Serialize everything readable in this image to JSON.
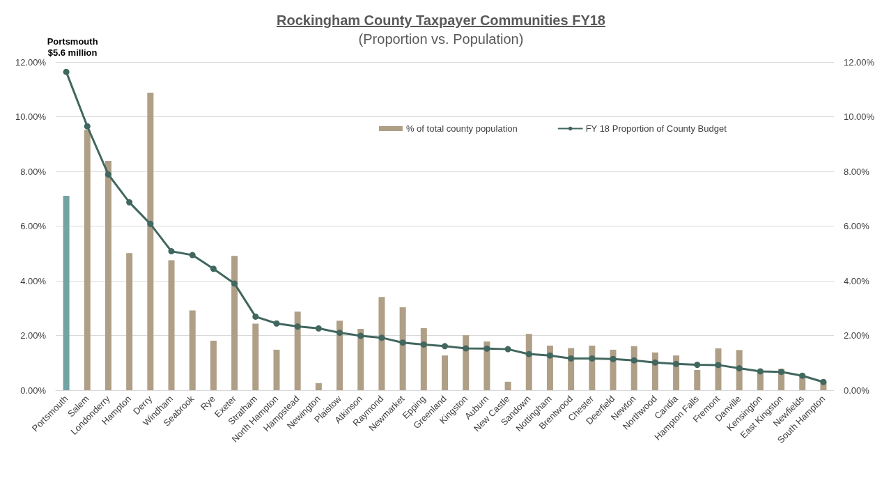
{
  "chart_data": {
    "type": "bar",
    "title": "Rockingham County Taxpayer Communities FY18",
    "subtitle": "(Proportion vs. Population)",
    "categories": [
      "Portsmouth",
      "Salem",
      "Londonderry",
      "Hampton",
      "Derry",
      "Windham",
      "Seabrook",
      "Rye",
      "Exeter",
      "Stratham",
      "North Hampton",
      "Hampstead",
      "Newington",
      "Plaistow",
      "Atkinson",
      "Raymond",
      "Newmarket",
      "Epping",
      "Greenland",
      "Kingston",
      "Auburn",
      "New Castle",
      "Sandown",
      "Nottingham",
      "Brentwood",
      "Chester",
      "Deerfield",
      "Newton",
      "Northwood",
      "Candia",
      "Hampton Falls",
      "Fremont",
      "Danville",
      "Kensington",
      "East Kingston",
      "Newfields",
      "South Hampton"
    ],
    "series": [
      {
        "name": "% of total county population",
        "color": "#b09f87",
        "colors": [
          "#72a4a3",
          "#b09f87",
          "#b09f87",
          "#b09f87",
          "#b09f87",
          "#b09f87",
          "#b09f87",
          "#b09f87",
          "#b09f87",
          "#b09f87",
          "#b09f87",
          "#b09f87",
          "#b09f87",
          "#b09f87",
          "#b09f87",
          "#b09f87",
          "#b09f87",
          "#b09f87",
          "#b09f87",
          "#b09f87",
          "#b09f87",
          "#b09f87",
          "#b09f87",
          "#b09f87",
          "#b09f87",
          "#b09f87",
          "#b09f87",
          "#b09f87",
          "#b09f87",
          "#b09f87",
          "#b09f87",
          "#b09f87",
          "#b09f87",
          "#b09f87",
          "#b09f87",
          "#b09f87",
          "#b09f87"
        ],
        "values": [
          7.11,
          9.52,
          8.38,
          5.01,
          10.88,
          4.75,
          2.92,
          1.81,
          4.91,
          2.43,
          1.48,
          2.87,
          0.26,
          2.54,
          2.24,
          3.41,
          3.03,
          2.27,
          1.27,
          2.01,
          1.78,
          0.31,
          2.06,
          1.63,
          1.54,
          1.63,
          1.48,
          1.61,
          1.38,
          1.27,
          0.74,
          1.53,
          1.47,
          0.68,
          0.78,
          0.55,
          0.3
        ]
      },
      {
        "name": "FY 18 Proportion of County Budget",
        "type": "line",
        "axis": "y2",
        "color": "#41675f",
        "values": [
          11.64,
          9.65,
          7.89,
          6.87,
          6.08,
          5.08,
          4.94,
          4.44,
          3.9,
          2.69,
          2.44,
          2.33,
          2.26,
          2.1,
          1.99,
          1.92,
          1.74,
          1.67,
          1.61,
          1.53,
          1.52,
          1.5,
          1.32,
          1.27,
          1.16,
          1.16,
          1.14,
          1.09,
          1.01,
          0.96,
          0.93,
          0.92,
          0.8,
          0.69,
          0.67,
          0.53,
          0.3
        ]
      }
    ],
    "ylim": [
      0,
      12
    ],
    "yticks": [
      {
        "value": 0,
        "label": "0.00%"
      },
      {
        "value": 2,
        "label": "2.00%"
      },
      {
        "value": 4,
        "label": "4.00%"
      },
      {
        "value": 6,
        "label": "6.00%"
      },
      {
        "value": 8,
        "label": "8.00%"
      },
      {
        "value": 10,
        "label": "10.00%"
      },
      {
        "value": 12,
        "label": "12.00%"
      }
    ],
    "y2lim": [
      0,
      12
    ],
    "y2ticks": [
      {
        "value": 0,
        "label": "0.00%"
      },
      {
        "value": 2,
        "label": "2.00%"
      },
      {
        "value": 4,
        "label": "4.00%"
      },
      {
        "value": 6,
        "label": "6.00%"
      },
      {
        "value": 8,
        "label": "8.00%"
      },
      {
        "value": 10,
        "label": "10.00%"
      },
      {
        "value": 12,
        "label": "12.00%"
      }
    ],
    "grid": "y",
    "legend": "top right",
    "marker": "circle",
    "annotations": [
      {
        "text": "Portsmouth\n$5.6 million",
        "x": "Portsmouth",
        "y": 11.64
      }
    ]
  }
}
